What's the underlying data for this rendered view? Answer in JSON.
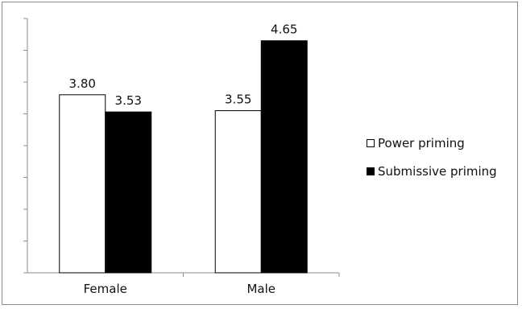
{
  "chart_data": {
    "type": "bar",
    "categories": [
      "Female",
      "Male"
    ],
    "series": [
      {
        "name": "Power priming",
        "values": [
          3.8,
          3.55
        ],
        "labels": [
          "3.80",
          "3.55"
        ],
        "color": "#ffffff"
      },
      {
        "name": "Submissive priming",
        "values": [
          3.53,
          4.65
        ],
        "labels": [
          "3.53",
          "4.65"
        ],
        "color": "#000000"
      }
    ],
    "ylim": [
      1,
      5
    ],
    "y_tick_count": 8,
    "y_tick_labels_shown": false,
    "grid": false,
    "legend": "right"
  }
}
